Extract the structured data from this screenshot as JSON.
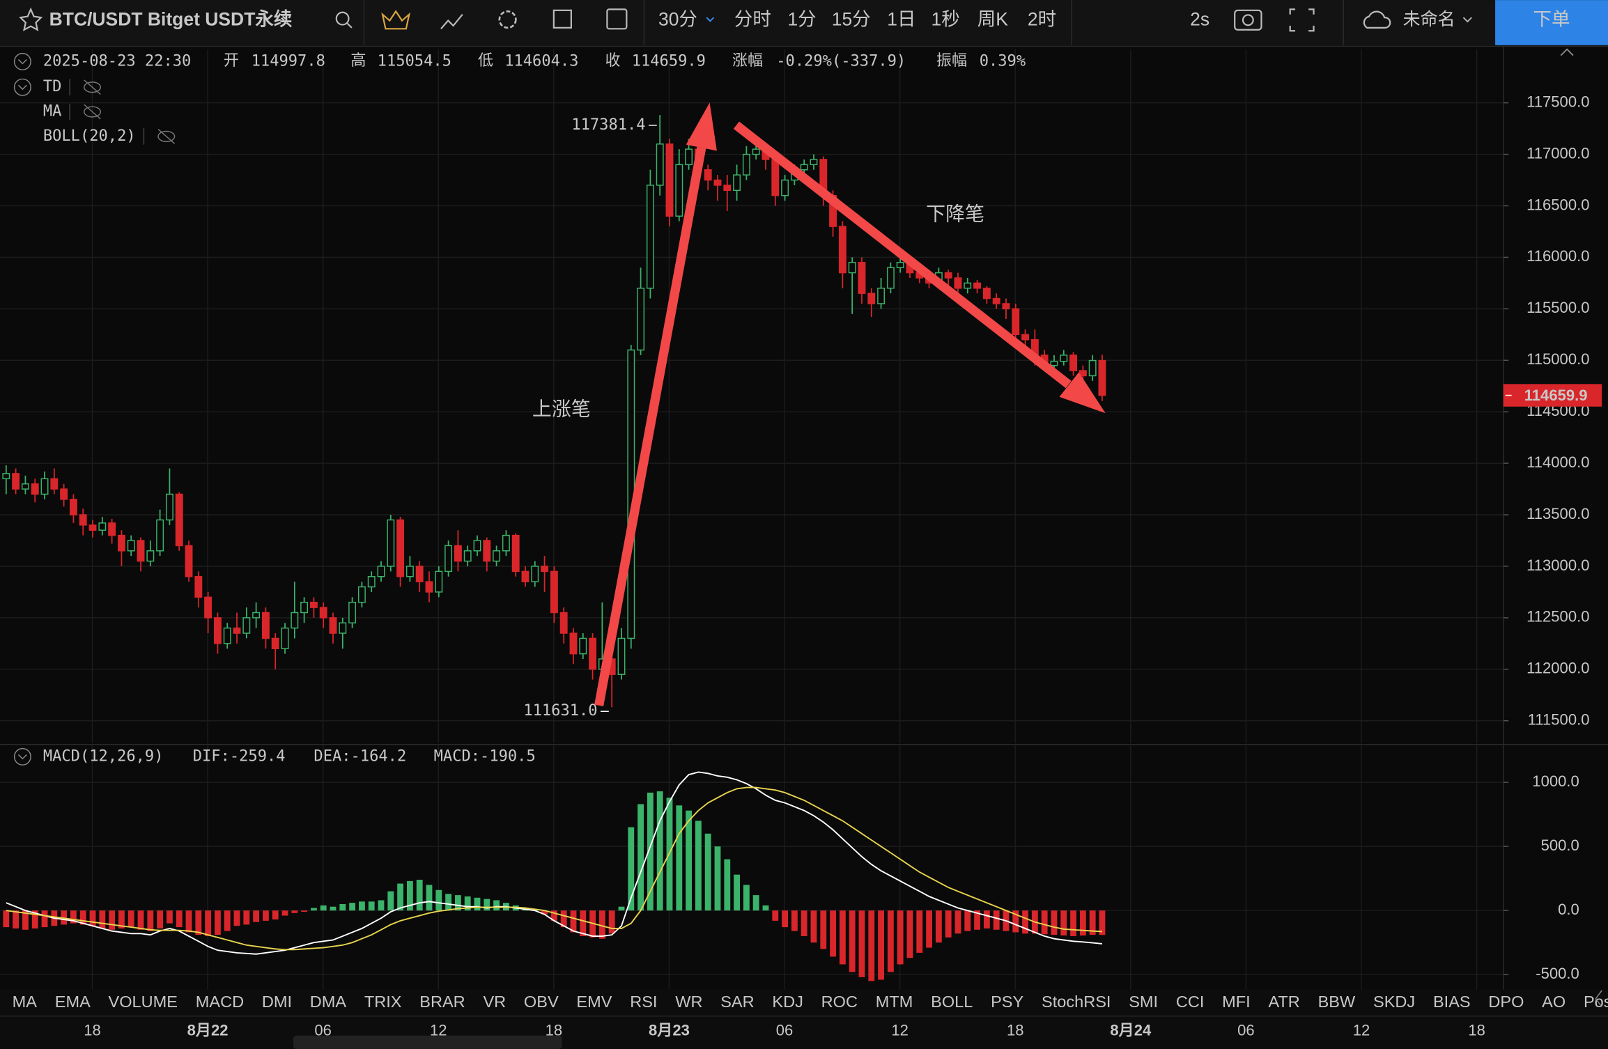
{
  "toolbar": {
    "symbol": "BTC/USDT Bitget USDT永续",
    "intervals": [
      "30分",
      "分时",
      "1分",
      "15分",
      "1日",
      "1秒",
      "周K",
      "2时"
    ],
    "active_interval": 0,
    "refresh": "2s",
    "layout_name": "未命名",
    "order_button": "下单"
  },
  "info": {
    "time": "2025-08-23 22:30",
    "open_label": "开",
    "high_label": "高",
    "low_label": "低",
    "close_label": "收",
    "change_label": "涨幅",
    "change": "-0.29%(-337.9)",
    "amplitude_label": "振幅",
    "amplitude": "0.39%"
  },
  "overlays": [
    "TD",
    "MA",
    "BOLL(20,2)"
  ],
  "indicator_tabs": [
    "MA",
    "EMA",
    "VOLUME",
    "MACD",
    "DMI",
    "DMA",
    "TRIX",
    "BRAR",
    "VR",
    "OBV",
    "EMV",
    "RSI",
    "WR",
    "SAR",
    "KDJ",
    "ROC",
    "MTM",
    "BOLL",
    "PSY",
    "StochRSI",
    "SMI",
    "CCI",
    "MFI",
    "ATR",
    "BBW",
    "SKDJ",
    "BIAS",
    "DPO",
    "AO",
    "Position"
  ],
  "active_tab": 3,
  "chart_data": [
    {
      "type": "candlestick",
      "up_color": "#3bb36a",
      "down_color": "#d9262b",
      "grid": true,
      "x_labels": [
        "18",
        "8月22",
        "06",
        "12",
        "18",
        "8月23",
        "06",
        "12",
        "18",
        "8月24",
        "06",
        "12",
        "18"
      ],
      "ylim": [
        111280,
        118020
      ],
      "yticks": [
        {
          "value": 117500,
          "label": "117500.0"
        },
        {
          "value": 117000,
          "label": "117000.0"
        },
        {
          "value": 116500,
          "label": "116500.0"
        },
        {
          "value": 116000,
          "label": "116000.0"
        },
        {
          "value": 115500,
          "label": "115500.0"
        },
        {
          "value": 115000,
          "label": "115000.0"
        },
        {
          "value": 114500,
          "label": "114500.0"
        },
        {
          "value": 114000,
          "label": "114000.0"
        },
        {
          "value": 113500,
          "label": "113500.0"
        },
        {
          "value": 113000,
          "label": "113000.0"
        },
        {
          "value": 112500,
          "label": "112500.0"
        },
        {
          "value": 112000,
          "label": "112000.0"
        },
        {
          "value": 111500,
          "label": "111500.0"
        }
      ],
      "annotations": [
        {
          "value": 117381.4,
          "label": "117381.4"
        },
        {
          "value": 111631,
          "label": "111631.0"
        }
      ],
      "text_labels": [
        "上涨笔",
        "下降笔"
      ],
      "open": [
        113850,
        113900,
        113750,
        113800,
        113700,
        113850,
        113750,
        113650,
        113500,
        113400,
        113350,
        113420,
        113300,
        113150,
        113250,
        113050,
        113150,
        113450,
        113700,
        113200,
        112900,
        112700,
        112500,
        112250,
        112400,
        112350,
        112500,
        112550,
        112300,
        112200,
        112400,
        112550,
        112650,
        112600,
        112500,
        112350,
        112450,
        112650,
        112800,
        112900,
        113000,
        113450,
        112900,
        113000,
        112850,
        112750,
        112950,
        113200,
        113050,
        113150,
        113250,
        113050,
        113150,
        113300,
        112950,
        112850,
        113000,
        112950,
        112550,
        112350,
        112150,
        112300,
        112000,
        112100,
        111950,
        112300,
        115100,
        115700,
        116700,
        117100,
        116400,
        116900,
        117050,
        116850,
        116750,
        116700,
        116650,
        116800,
        117000,
        117050,
        116950,
        116600,
        116750,
        116850,
        116900,
        116950,
        116600,
        116300,
        115850,
        115950,
        115650,
        115550,
        115700,
        115900,
        115950,
        115850,
        115800,
        115750,
        115850,
        115800,
        115700,
        115750,
        115700,
        115600,
        115550,
        115500,
        115250,
        115200,
        115050,
        114950,
        114990,
        115050,
        114900,
        114850,
        114997.8
      ],
      "high": [
        113980,
        113950,
        113880,
        113850,
        113920,
        113950,
        113800,
        113700,
        113560,
        113450,
        113480,
        113460,
        113350,
        113300,
        113280,
        113250,
        113550,
        113950,
        113720,
        113250,
        112950,
        112750,
        112550,
        112450,
        112550,
        112600,
        112650,
        112600,
        112350,
        112450,
        112850,
        112700,
        112700,
        112650,
        112550,
        112500,
        112700,
        112850,
        112950,
        113050,
        113500,
        113480,
        113100,
        113050,
        112950,
        113000,
        113250,
        113350,
        113200,
        113300,
        113280,
        113200,
        113350,
        113320,
        113000,
        113050,
        113100,
        113000,
        112600,
        112400,
        112350,
        112350,
        112650,
        112150,
        112400,
        115150,
        115900,
        116850,
        117381.4,
        117150,
        117050,
        117150,
        117100,
        116900,
        116800,
        116800,
        116900,
        117080,
        117150,
        117100,
        117000,
        116800,
        116900,
        116950,
        117000,
        116980,
        116650,
        116350,
        116000,
        116000,
        115700,
        115800,
        115950,
        116000,
        116000,
        115900,
        115850,
        115900,
        115880,
        115850,
        115800,
        115780,
        115720,
        115650,
        115600,
        115550,
        115300,
        115300,
        115100,
        115050,
        115100,
        115080,
        114950,
        115050,
        115054.5
      ],
      "low": [
        113700,
        113700,
        113700,
        113620,
        113650,
        113700,
        113580,
        113420,
        113300,
        113280,
        113300,
        113220,
        113000,
        113100,
        112950,
        113000,
        113100,
        113400,
        113150,
        112850,
        112600,
        112350,
        112150,
        112200,
        112250,
        112300,
        112400,
        112200,
        112000,
        112150,
        112300,
        112450,
        112500,
        112400,
        112250,
        112200,
        112400,
        112600,
        112750,
        112850,
        112950,
        112800,
        112850,
        112750,
        112650,
        112700,
        112900,
        112950,
        113000,
        113100,
        112950,
        113000,
        113100,
        112900,
        112800,
        112800,
        112750,
        112450,
        112250,
        112050,
        112100,
        111900,
        111950,
        111631,
        111900,
        112200,
        115050,
        115600,
        116600,
        116300,
        116350,
        116850,
        116750,
        116650,
        116550,
        116450,
        116550,
        116750,
        116950,
        116850,
        116500,
        116550,
        116700,
        116800,
        116850,
        116500,
        116200,
        115700,
        115450,
        115550,
        115420,
        115500,
        115650,
        115850,
        115800,
        115750,
        115700,
        115700,
        115700,
        115650,
        115650,
        115650,
        115550,
        115500,
        115400,
        115150,
        115100,
        114950,
        114900,
        114900,
        114950,
        114850,
        114800,
        114800,
        114604.3
      ],
      "close": [
        113900,
        113750,
        113800,
        113700,
        113850,
        113750,
        113650,
        113500,
        113400,
        113350,
        113420,
        113300,
        113150,
        113250,
        113050,
        113150,
        113450,
        113700,
        113200,
        112900,
        112700,
        112500,
        112250,
        112400,
        112350,
        112500,
        112550,
        112300,
        112200,
        112400,
        112550,
        112650,
        112600,
        112500,
        112350,
        112450,
        112650,
        112800,
        112900,
        113000,
        113450,
        112900,
        113000,
        112850,
        112750,
        112950,
        113200,
        113050,
        113150,
        113250,
        113050,
        113150,
        113300,
        112950,
        112850,
        113000,
        112950,
        112550,
        112350,
        112150,
        112300,
        112000,
        112100,
        111950,
        112300,
        115100,
        115700,
        116700,
        117100,
        116400,
        116900,
        117050,
        116850,
        116750,
        116700,
        116650,
        116800,
        117000,
        117050,
        116950,
        116600,
        116750,
        116850,
        116900,
        116950,
        116600,
        116300,
        115850,
        115950,
        115650,
        115550,
        115700,
        115900,
        115950,
        115850,
        115800,
        115750,
        115850,
        115800,
        115700,
        115750,
        115700,
        115600,
        115550,
        115500,
        115250,
        115200,
        115050,
        114950,
        114990,
        115050,
        114900,
        114850,
        114997.8,
        114659.9
      ]
    },
    {
      "type": "macd",
      "title": "MACD(12,26,9)",
      "up_color": "#3bb36a",
      "grid": true,
      "ylim": [
        -616,
        1288
      ],
      "yticks": [
        {
          "value": 1000,
          "label": "1000.0"
        },
        {
          "value": 500,
          "label": "500.0"
        },
        {
          "value": 0,
          "label": "0.0"
        },
        {
          "value": -500,
          "label": "-500.0"
        }
      ],
      "series": [
        {
          "name": "DIF:",
          "color": "#ffffff",
          "values": [
            60,
            30,
            0,
            -20,
            -40,
            -60,
            -70,
            -80,
            -100,
            -120,
            -140,
            -160,
            -170,
            -180,
            -180,
            -190,
            -160,
            -140,
            -160,
            -200,
            -240,
            -280,
            -310,
            -320,
            -330,
            -335,
            -340,
            -330,
            -320,
            -310,
            -290,
            -270,
            -250,
            -240,
            -230,
            -200,
            -170,
            -140,
            -100,
            -60,
            -10,
            20,
            40,
            60,
            70,
            60,
            50,
            40,
            30,
            30,
            20,
            30,
            30,
            20,
            10,
            0,
            -30,
            -80,
            -120,
            -160,
            -180,
            -200,
            -200,
            -190,
            -120,
            100,
            300,
            500,
            700,
            850,
            980,
            1060,
            1080,
            1070,
            1050,
            1040,
            1020,
            990,
            950,
            900,
            860,
            840,
            810,
            780,
            740,
            690,
            630,
            560,
            490,
            420,
            360,
            310,
            270,
            230,
            190,
            150,
            110,
            80,
            50,
            20,
            0,
            -20,
            -40,
            -60,
            -80,
            -110,
            -140,
            -170,
            -200,
            -220,
            -230,
            -240,
            -245,
            -252,
            -259.4
          ]
        },
        {
          "name": "DEA:",
          "color": "#e8d44d",
          "values": [
            0,
            -10,
            -20,
            -30,
            -40,
            -50,
            -60,
            -70,
            -80,
            -90,
            -100,
            -110,
            -120,
            -130,
            -140,
            -150,
            -155,
            -155,
            -155,
            -160,
            -170,
            -190,
            -210,
            -230,
            -250,
            -270,
            -280,
            -290,
            -300,
            -305,
            -305,
            -300,
            -295,
            -290,
            -280,
            -270,
            -250,
            -220,
            -190,
            -150,
            -110,
            -80,
            -60,
            -40,
            -20,
            -5,
            5,
            15,
            20,
            25,
            25,
            25,
            25,
            25,
            20,
            10,
            0,
            -20,
            -40,
            -60,
            -80,
            -100,
            -120,
            -140,
            -140,
            -100,
            0,
            150,
            300,
            450,
            600,
            700,
            780,
            840,
            880,
            920,
            950,
            960,
            960,
            950,
            940,
            920,
            890,
            860,
            820,
            780,
            740,
            700,
            650,
            600,
            550,
            500,
            450,
            400,
            350,
            300,
            260,
            220,
            180,
            150,
            120,
            90,
            60,
            30,
            0,
            -30,
            -60,
            -90,
            -110,
            -130,
            -145,
            -150,
            -155,
            -160,
            -164.2
          ]
        },
        {
          "name": "MACD:",
          "color": "#d9262b",
          "type": "bar",
          "values": [
            -130,
            -140,
            -150,
            -140,
            -130,
            -120,
            -110,
            -100,
            -110,
            -120,
            -140,
            -150,
            -140,
            -130,
            -150,
            -160,
            -140,
            -100,
            -130,
            -170,
            -190,
            -200,
            -190,
            -160,
            -120,
            -110,
            -90,
            -80,
            -70,
            -40,
            -20,
            -10,
            20,
            40,
            30,
            50,
            60,
            70,
            70,
            80,
            150,
            210,
            230,
            240,
            200,
            160,
            130,
            120,
            110,
            100,
            90,
            80,
            60,
            40,
            20,
            10,
            -30,
            -80,
            -130,
            -170,
            -200,
            -210,
            -220,
            -180,
            30,
            650,
            830,
            920,
            930,
            880,
            820,
            780,
            700,
            600,
            500,
            400,
            280,
            200,
            120,
            40,
            -80,
            -130,
            -160,
            -200,
            -250,
            -300,
            -360,
            -420,
            -480,
            -520,
            -550,
            -540,
            -480,
            -420,
            -370,
            -330,
            -290,
            -250,
            -210,
            -180,
            -160,
            -150,
            -140,
            -150,
            -160,
            -170,
            -180,
            -180,
            -185,
            -190,
            -195,
            -200,
            -195,
            -190,
            -190.5
          ]
        }
      ]
    }
  ]
}
